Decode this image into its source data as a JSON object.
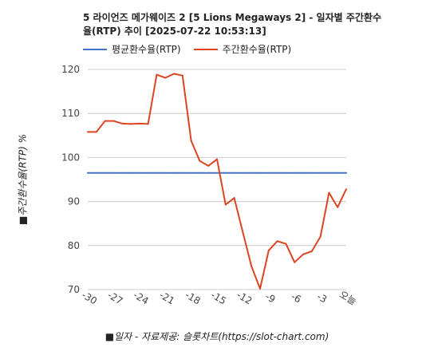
{
  "chart_data": {
    "type": "line",
    "title": "5 라이언즈 메가웨이즈 2 [5 Lions Megaways 2] - 일자별 주간환수율(RTP) 추이 [2025-07-22 10:53:13]",
    "xlabel": "■일자 - 자료제공: 슬롯차트(https://slot-chart.com)",
    "ylabel": "■주간환수율(RTP) %",
    "ylim": [
      70,
      120
    ],
    "yticks": [
      "70",
      "80",
      "90",
      "100",
      "110",
      "120"
    ],
    "x": [
      -30,
      -29,
      -28,
      -27,
      -26,
      -25,
      -24,
      -23,
      -22,
      -21,
      -20,
      -19,
      -18,
      -17,
      -16,
      -15,
      -14,
      -13,
      -12,
      -11,
      -10,
      -9,
      -8,
      -7,
      -6,
      -5,
      -4,
      -3,
      -2,
      -1,
      0
    ],
    "xticks": [
      {
        "x": -30,
        "label": "-30"
      },
      {
        "x": -27,
        "label": "-27"
      },
      {
        "x": -24,
        "label": "-24"
      },
      {
        "x": -21,
        "label": "-21"
      },
      {
        "x": -18,
        "label": "-18"
      },
      {
        "x": -15,
        "label": "-15"
      },
      {
        "x": -12,
        "label": "-12"
      },
      {
        "x": -9,
        "label": "-9"
      },
      {
        "x": -6,
        "label": "-6"
      },
      {
        "x": -3,
        "label": "-3"
      },
      {
        "x": 0,
        "label": "오늘"
      }
    ],
    "series": [
      {
        "name": "평균환수율(RTP)",
        "color": "#4472c4",
        "values": [
          96.5,
          96.5,
          96.5,
          96.5,
          96.5,
          96.5,
          96.5,
          96.5,
          96.5,
          96.5,
          96.5,
          96.5,
          96.5,
          96.5,
          96.5,
          96.5,
          96.5,
          96.5,
          96.5,
          96.5,
          96.5,
          96.5,
          96.5,
          96.5,
          96.5,
          96.5,
          96.5,
          96.5,
          96.5,
          96.5,
          96.5
        ]
      },
      {
        "name": "주간환수율(RTP)",
        "color": "#dd4422",
        "values": [
          105.8,
          105.8,
          108.3,
          108.3,
          107.7,
          107.6,
          107.7,
          107.6,
          118.8,
          118.1,
          119.0,
          118.6,
          103.8,
          99.2,
          98.1,
          99.6,
          89.3,
          90.8,
          83.0,
          75.3,
          70.2,
          78.9,
          81.0,
          80.4,
          76.2,
          78.0,
          78.7,
          82.0,
          92.0,
          88.7,
          92.8
        ]
      }
    ]
  }
}
